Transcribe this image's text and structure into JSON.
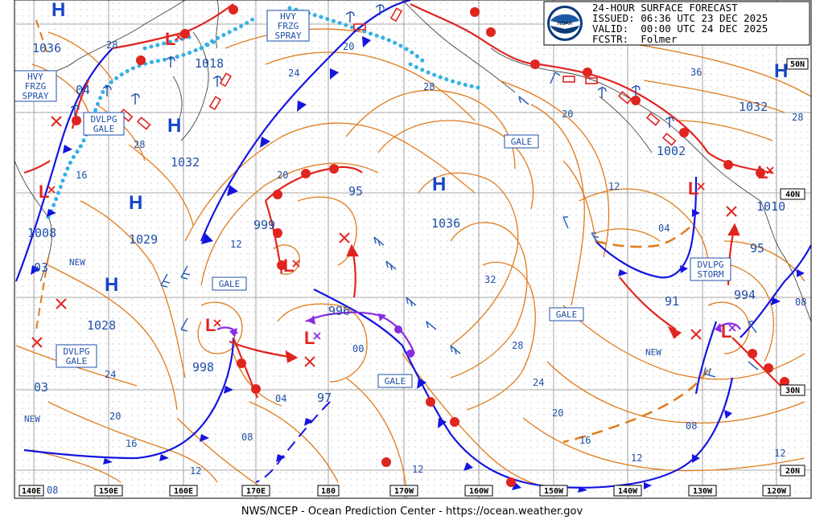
{
  "header": {
    "title": "24-HOUR SURFACE FORECAST",
    "issued": "ISSUED: 06:36 UTC 23 DEC 2025",
    "valid": "VALID:  00:00 UTC 24 DEC 2025",
    "forecaster": "FCSTR:  Folmer",
    "logo_text": "NOAA"
  },
  "credit": "NWS/NCEP - Ocean Prediction Center - https://ocean.weather.gov",
  "axis": {
    "longitudes": [
      "140E",
      "150E",
      "160E",
      "170E",
      "180",
      "170W",
      "160W",
      "150W",
      "140W",
      "130W",
      "120W"
    ],
    "latitudes": [
      "50N",
      "40N",
      "30N",
      "20N"
    ]
  },
  "highs": [
    {
      "label": "H",
      "value": "1036"
    },
    {
      "label": "H",
      "value": "1032"
    },
    {
      "label": "H",
      "value": "1029"
    },
    {
      "label": "H",
      "value": "1028"
    },
    {
      "label": "H",
      "value": "1036"
    },
    {
      "label": "H",
      "value": "1032"
    }
  ],
  "lows": [
    {
      "label": "L",
      "value": "1018"
    },
    {
      "label": "L",
      "value": "1008"
    },
    {
      "label": "L",
      "value": "998"
    },
    {
      "label": "L",
      "value": "999"
    },
    {
      "label": "L",
      "value": "996"
    },
    {
      "label": "L",
      "value": "994"
    },
    {
      "label": "L",
      "value": "1002"
    },
    {
      "label": "L",
      "value": "1010"
    }
  ],
  "pressure_labels": [
    "04",
    "03",
    "03",
    "95",
    "97",
    "91",
    "95",
    "28",
    "24",
    "20",
    "16",
    "12",
    "08",
    "04",
    "00",
    "32",
    "28",
    "24",
    "20",
    "16",
    "12",
    "08",
    "36",
    "28",
    "12",
    "04",
    "08",
    "12",
    "16",
    "20",
    "24",
    "28",
    "12",
    "08"
  ],
  "warnings": {
    "hvy_frzg_spray": "HVY\nFRZG\nSPRAY",
    "dvlpg_gale": "DVLPG\nGALE",
    "gale": "GALE",
    "dvlpg_storm": "DVLPG\nSTORM",
    "new": "NEW"
  },
  "warning_lines": {
    "hvy1": [
      "HVY",
      "FRZG",
      "SPRAY"
    ],
    "hvy2": [
      "HVY",
      "FRZG",
      "SPRAY"
    ],
    "dg1": [
      "DVLPG",
      "GALE"
    ],
    "dg2": [
      "DVLPG",
      "GALE"
    ],
    "ds1": [
      "DVLPG",
      "STORM"
    ]
  },
  "colors": {
    "isobar": "#e07a1a",
    "warm_front": "#e0241f",
    "cold_front": "#1414e0",
    "occluded": "#8a2be2",
    "ice": "#35b0e6",
    "text": "#1f4fa8"
  }
}
